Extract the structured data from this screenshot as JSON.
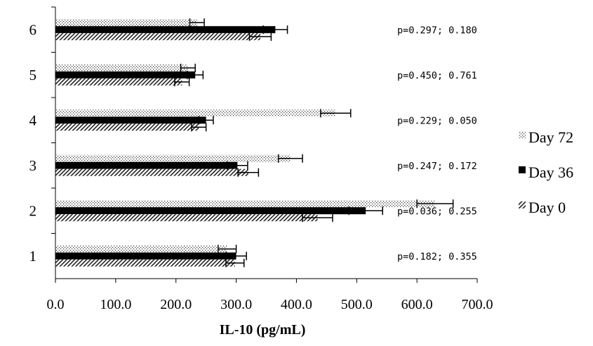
{
  "chart_data": {
    "type": "bar",
    "orientation": "horizontal",
    "categories": [
      "1",
      "2",
      "3",
      "4",
      "5",
      "6"
    ],
    "series": [
      {
        "name": "Day 72",
        "pattern": "dots",
        "values": [
          285,
          630,
          390,
          465,
          220,
          235
        ],
        "errors": [
          15,
          30,
          20,
          25,
          12,
          12
        ]
      },
      {
        "name": "Day 36",
        "pattern": "solid",
        "values": [
          300,
          515,
          302,
          250,
          232,
          365
        ],
        "errors": [
          17,
          28,
          17,
          12,
          13,
          20
        ]
      },
      {
        "name": "Day 0",
        "pattern": "hatch",
        "values": [
          298,
          435,
          320,
          238,
          210,
          340
        ],
        "errors": [
          15,
          25,
          17,
          12,
          12,
          18
        ]
      }
    ],
    "annotations": [
      "p=0.182; 0.355",
      "p=0.036; 0.255",
      "p=0.247; 0.172",
      "p=0.229; 0.050",
      "p=0.450; 0.761",
      "p=0.297; 0.180"
    ],
    "xticks": [
      "0.0",
      "100.0",
      "200.0",
      "300.0",
      "400.0",
      "500.0",
      "600.0",
      "700.0"
    ],
    "xlabel": "IL-10 (pg/mL)",
    "xlim": [
      0,
      700
    ],
    "grid": false,
    "legend_position": "right"
  }
}
